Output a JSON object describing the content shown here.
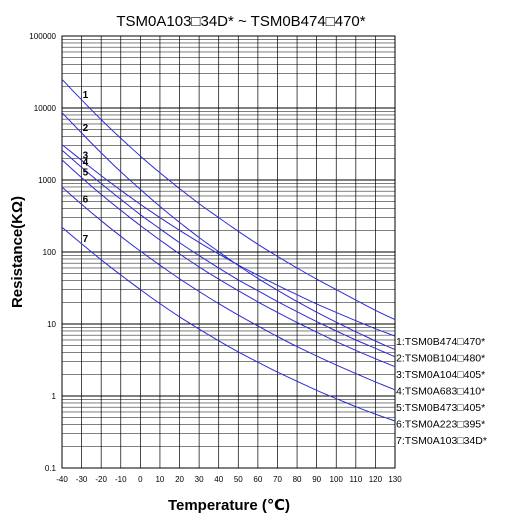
{
  "chart_data": {
    "type": "line",
    "title": "TSM0A103□34D* ~ TSM0B474□470*",
    "xlabel": "Temperature (℃)",
    "ylabel": "Resistance(KΩ)",
    "xlim": [
      -40,
      130
    ],
    "ylim": [
      0.1,
      100000
    ],
    "yscale": "log",
    "grid": true,
    "legend_placement": "right",
    "line_color": "#2b2bd6",
    "x_ticks": [
      -40,
      -30,
      -20,
      -10,
      0,
      10,
      20,
      30,
      40,
      50,
      60,
      70,
      80,
      90,
      100,
      110,
      120,
      130
    ],
    "x_tick_labels": [
      "-40",
      "-30",
      "-20",
      "-10",
      "0",
      "10",
      "20",
      "30",
      "40",
      "50",
      "60",
      "70",
      "80",
      "90",
      "100",
      "110",
      "120",
      "130"
    ],
    "y_ticks": [
      0.1,
      1,
      10,
      100,
      1000,
      10000,
      100000
    ],
    "y_tick_labels": [
      "0.1",
      "1",
      "10",
      "100",
      "1000",
      "10000",
      "100000"
    ],
    "curve_tags_at_x": -30,
    "series": [
      {
        "tag": "1",
        "legend": "1:TSM0B474□470*",
        "x": [
          -40,
          -30,
          -20,
          -10,
          0,
          10,
          20,
          30,
          40,
          50,
          60,
          70,
          80,
          90,
          100,
          110,
          120,
          130
        ],
        "values": [
          25000,
          13000,
          6900,
          3800,
          2150,
          1260,
          760,
          470,
          300,
          194,
          128,
          87,
          60,
          42,
          30,
          21.5,
          15.5,
          11.5
        ]
      },
      {
        "tag": "2",
        "legend": "2:TSM0B104□480*",
        "x": [
          -40,
          -30,
          -20,
          -10,
          0,
          10,
          20,
          30,
          40,
          50,
          60,
          70,
          80,
          90,
          100,
          110,
          120,
          130
        ],
        "values": [
          8600,
          4500,
          2380,
          1300,
          740,
          430,
          258,
          159,
          101,
          65,
          43,
          29.5,
          20.5,
          14.6,
          10.6,
          7.8,
          5.8,
          4.4
        ]
      },
      {
        "tag": "3",
        "legend": "3:TSM0A104□405*",
        "x": [
          -40,
          -30,
          -20,
          -10,
          0,
          10,
          20,
          30,
          40,
          50,
          60,
          70,
          80,
          90,
          100,
          110,
          120,
          130
        ],
        "values": [
          3100,
          1880,
          1150,
          720,
          460,
          300,
          200,
          136,
          94,
          66,
          47.5,
          34.5,
          25.5,
          19,
          14.5,
          11.1,
          8.6,
          6.8
        ]
      },
      {
        "tag": "4",
        "legend": "4:TSM0A683□410*",
        "x": [
          -40,
          -30,
          -20,
          -10,
          0,
          10,
          20,
          30,
          40,
          50,
          60,
          70,
          80,
          90,
          100,
          110,
          120,
          130
        ],
        "values": [
          2600,
          1500,
          890,
          540,
          330,
          210,
          135,
          89,
          60,
          41,
          29,
          20.5,
          14.8,
          10.8,
          8,
          6,
          4.6,
          3.5
        ]
      },
      {
        "tag": "5",
        "legend": "5:TSM0B473□405*",
        "x": [
          -40,
          -30,
          -20,
          -10,
          0,
          10,
          20,
          30,
          40,
          50,
          60,
          70,
          80,
          90,
          100,
          110,
          120,
          130
        ],
        "values": [
          1900,
          1080,
          630,
          380,
          233,
          147,
          94,
          62,
          42,
          29,
          20.3,
          14.5,
          10.5,
          7.7,
          5.7,
          4.3,
          3.3,
          2.55
        ]
      },
      {
        "tag": "6",
        "legend": "6:TSM0A223□395*",
        "x": [
          -40,
          -30,
          -20,
          -10,
          0,
          10,
          20,
          30,
          40,
          50,
          60,
          70,
          80,
          90,
          100,
          110,
          120,
          130
        ],
        "values": [
          800,
          460,
          272,
          165,
          103,
          65.5,
          42.5,
          28.3,
          19.2,
          13.3,
          9.4,
          6.7,
          4.85,
          3.6,
          2.7,
          2.05,
          1.57,
          1.22
        ]
      },
      {
        "tag": "7",
        "legend": "7:TSM0A103□34D*",
        "x": [
          -40,
          -30,
          -20,
          -10,
          0,
          10,
          20,
          30,
          40,
          50,
          60,
          70,
          80,
          90,
          100,
          110,
          120,
          130
        ],
        "values": [
          220,
          130,
          78,
          48,
          30,
          19.2,
          12.6,
          8.5,
          5.85,
          4.1,
          2.95,
          2.15,
          1.6,
          1.2,
          0.92,
          0.71,
          0.56,
          0.45
        ]
      }
    ]
  }
}
